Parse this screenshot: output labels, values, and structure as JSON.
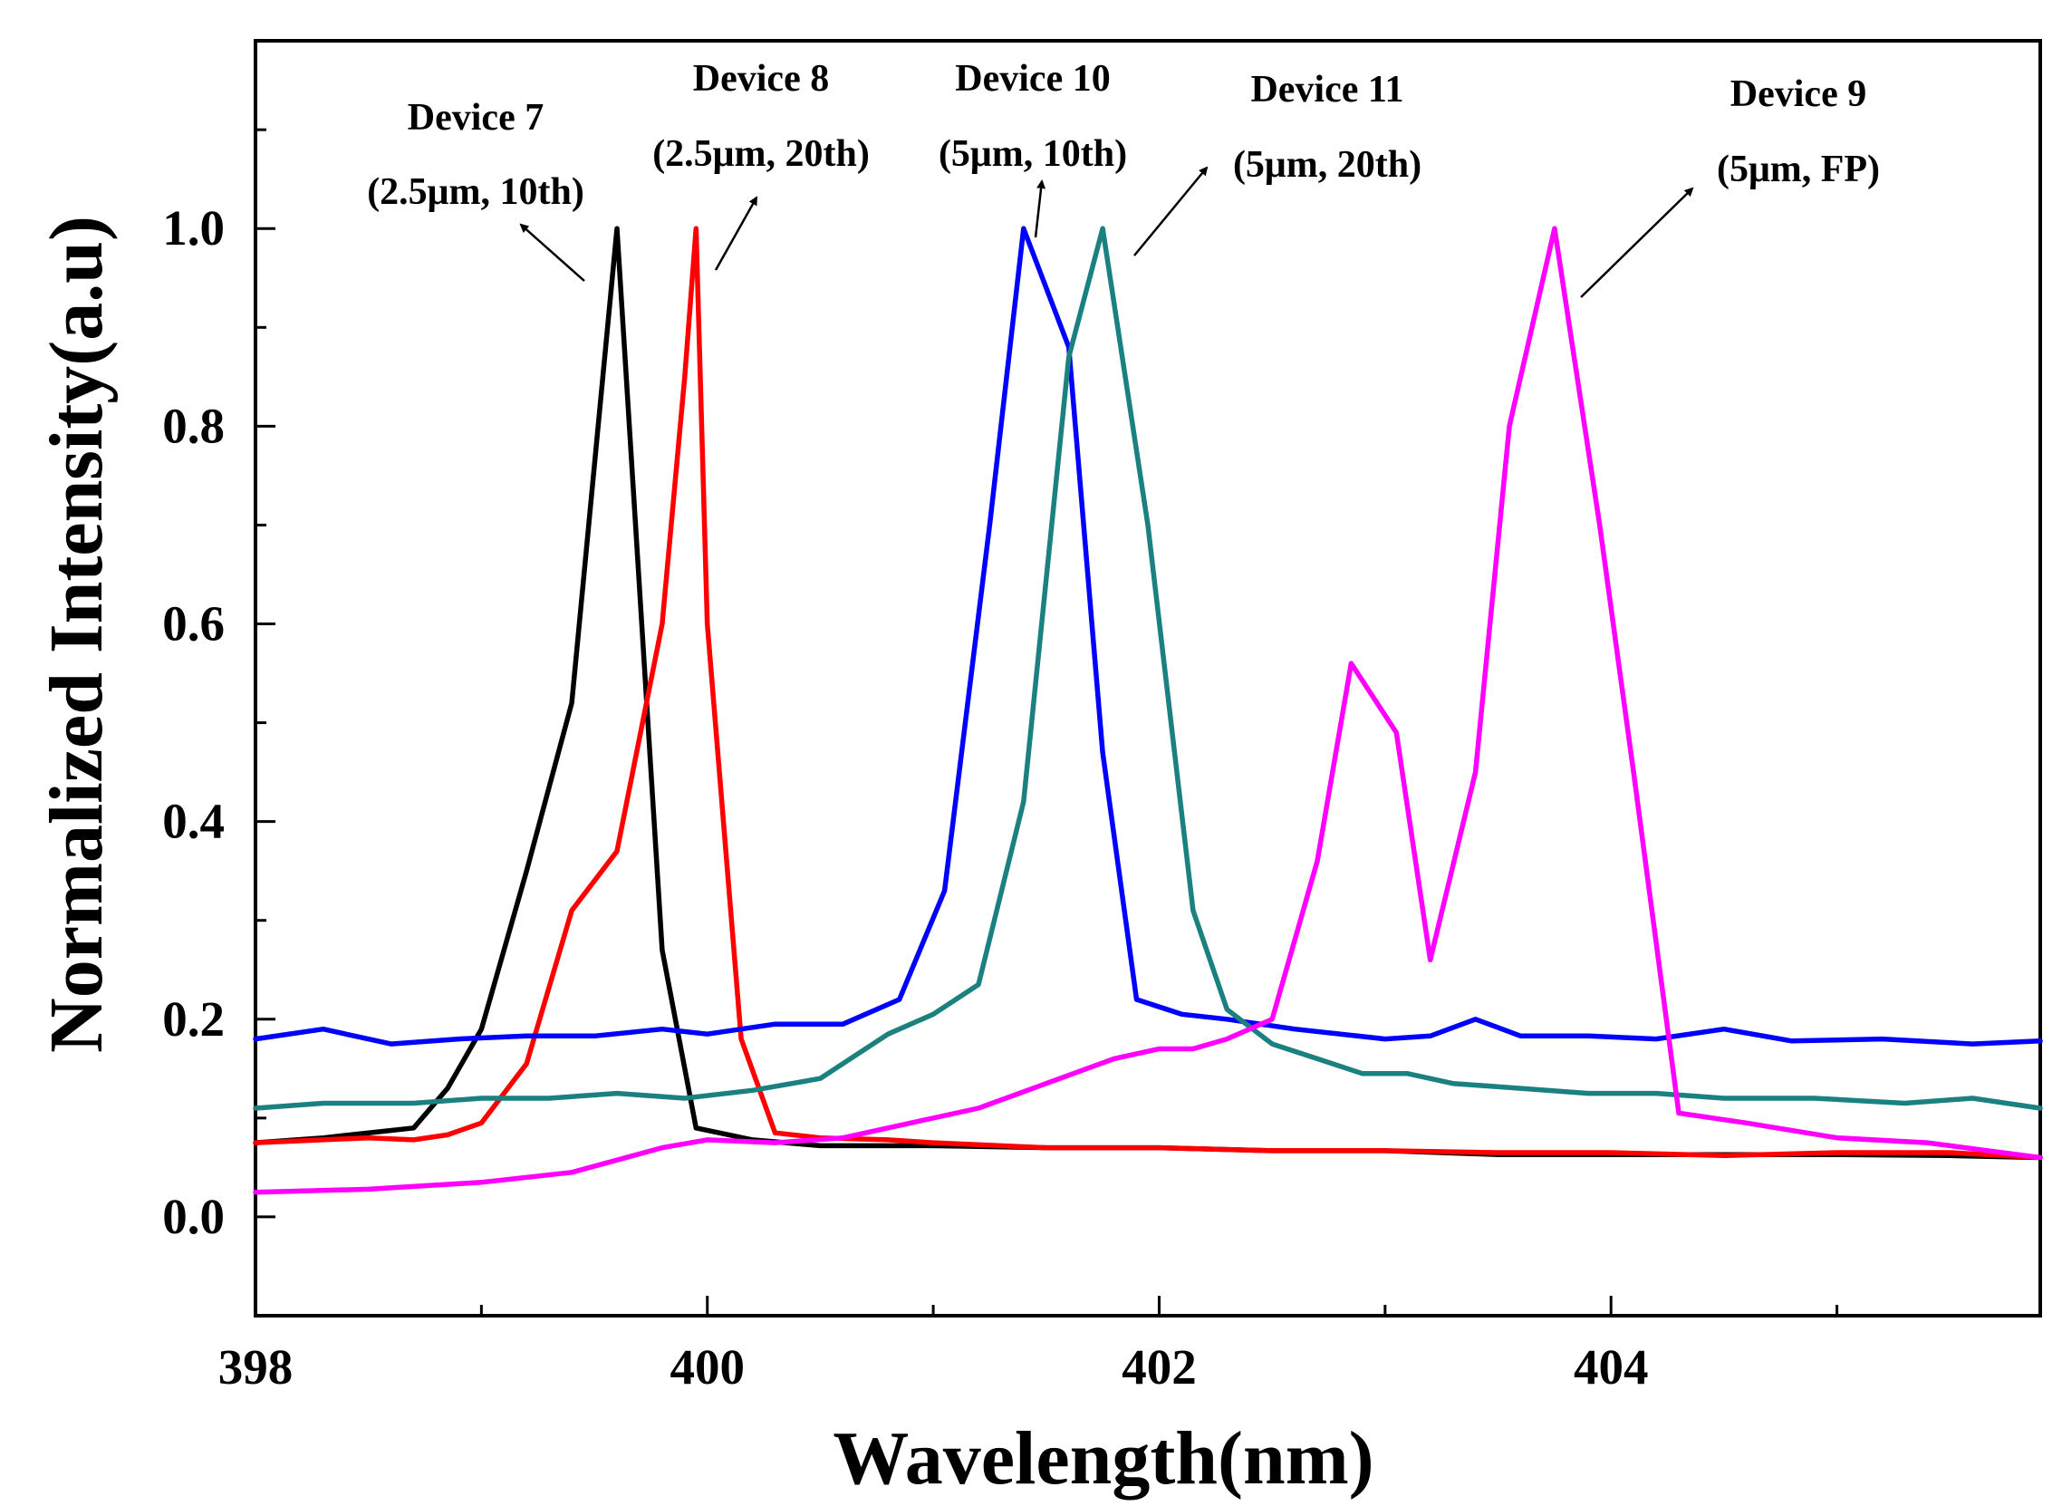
{
  "chart_data": {
    "type": "line",
    "xlabel": "Wavelength(nm)",
    "ylabel": "Normalized Intensity(a.u)",
    "xlim": [
      398,
      405.9
    ],
    "ylim": [
      -0.1,
      1.19
    ],
    "xticks": [
      398,
      400,
      402,
      404
    ],
    "xtick_labels": [
      "398",
      "400",
      "402",
      "404"
    ],
    "yticks": [
      0.0,
      0.2,
      0.4,
      0.6,
      0.8,
      1.0
    ],
    "ytick_labels": [
      "0.0",
      "0.2",
      "0.4",
      "0.6",
      "0.8",
      "1.0"
    ],
    "grid": false,
    "series": [
      {
        "name": "Device 7 (2.5μm, 10th)",
        "color": "#000000",
        "x": [
          398.0,
          398.3,
          398.7,
          398.85,
          399.0,
          399.2,
          399.4,
          399.6,
          399.8,
          399.95,
          400.2,
          400.5,
          401.0,
          401.5,
          402.0,
          402.5,
          403.0,
          403.5,
          404.0,
          404.5,
          405.0,
          405.5,
          405.9
        ],
        "y": [
          0.075,
          0.08,
          0.09,
          0.13,
          0.19,
          0.35,
          0.52,
          1.0,
          0.27,
          0.09,
          0.078,
          0.072,
          0.072,
          0.07,
          0.07,
          0.067,
          0.067,
          0.063,
          0.063,
          0.063,
          0.063,
          0.062,
          0.06
        ]
      },
      {
        "name": "Device 8 (2.5μm, 20th)",
        "color": "#ff0000",
        "x": [
          398.0,
          398.5,
          398.7,
          398.85,
          399.0,
          399.2,
          399.4,
          399.6,
          399.8,
          399.9,
          399.95,
          400.0,
          400.15,
          400.3,
          400.5,
          400.8,
          401.0,
          401.5,
          402.0,
          402.5,
          403.0,
          403.5,
          404.0,
          404.5,
          405.0,
          405.5,
          405.9
        ],
        "y": [
          0.075,
          0.08,
          0.078,
          0.083,
          0.095,
          0.155,
          0.31,
          0.37,
          0.6,
          0.85,
          1.0,
          0.6,
          0.18,
          0.085,
          0.08,
          0.078,
          0.075,
          0.07,
          0.07,
          0.067,
          0.067,
          0.065,
          0.065,
          0.062,
          0.065,
          0.065,
          0.06
        ]
      },
      {
        "name": "Device 10 (5μm, 10th)",
        "color": "#0000ff",
        "x": [
          398.0,
          398.3,
          398.6,
          398.9,
          399.2,
          399.5,
          399.8,
          400.0,
          400.3,
          400.6,
          400.85,
          401.05,
          401.25,
          401.4,
          401.6,
          401.75,
          401.9,
          402.1,
          402.3,
          402.6,
          403.0,
          403.2,
          403.4,
          403.6,
          403.9,
          404.2,
          404.5,
          404.8,
          405.2,
          405.6,
          405.9
        ],
        "y": [
          0.18,
          0.19,
          0.175,
          0.18,
          0.183,
          0.183,
          0.19,
          0.185,
          0.195,
          0.195,
          0.22,
          0.33,
          0.7,
          1.0,
          0.88,
          0.47,
          0.22,
          0.205,
          0.2,
          0.19,
          0.18,
          0.183,
          0.2,
          0.183,
          0.183,
          0.18,
          0.19,
          0.178,
          0.18,
          0.175,
          0.178
        ]
      },
      {
        "name": "Device 11 (5μm, 20th)",
        "color": "#1a8080",
        "x": [
          398.0,
          398.3,
          398.7,
          399.0,
          399.3,
          399.6,
          399.9,
          400.2,
          400.5,
          400.8,
          401.0,
          401.2,
          401.4,
          401.6,
          401.75,
          401.95,
          402.15,
          402.3,
          402.5,
          402.7,
          402.9,
          403.1,
          403.3,
          403.6,
          403.9,
          404.2,
          404.5,
          404.9,
          405.3,
          405.6,
          405.9
        ],
        "y": [
          0.11,
          0.115,
          0.115,
          0.12,
          0.12,
          0.125,
          0.12,
          0.128,
          0.14,
          0.185,
          0.205,
          0.235,
          0.42,
          0.87,
          1.0,
          0.7,
          0.31,
          0.21,
          0.175,
          0.16,
          0.145,
          0.145,
          0.135,
          0.13,
          0.125,
          0.125,
          0.12,
          0.12,
          0.115,
          0.12,
          0.11
        ]
      },
      {
        "name": "Device 9 (5μm, FP)",
        "color": "#ff00ff",
        "x": [
          398.0,
          398.5,
          399.0,
          399.4,
          399.8,
          400.0,
          400.3,
          400.6,
          400.9,
          401.2,
          401.5,
          401.8,
          402.0,
          402.15,
          402.3,
          402.5,
          402.7,
          402.85,
          403.05,
          403.2,
          403.4,
          403.55,
          403.75,
          403.95,
          404.1,
          404.3,
          404.6,
          405.0,
          405.4,
          405.9
        ],
        "y": [
          0.025,
          0.028,
          0.035,
          0.045,
          0.07,
          0.078,
          0.075,
          0.08,
          0.095,
          0.11,
          0.135,
          0.16,
          0.17,
          0.17,
          0.18,
          0.2,
          0.36,
          0.56,
          0.49,
          0.26,
          0.45,
          0.8,
          1.0,
          0.7,
          0.45,
          0.105,
          0.095,
          0.08,
          0.075,
          0.06
        ]
      }
    ],
    "annotations": [
      {
        "device": "Device 7",
        "detail": "(2.5μm, 10th)"
      },
      {
        "device": "Device 8",
        "detail": "(2.5μm, 20th)"
      },
      {
        "device": "Device 10",
        "detail": "(5μm, 10th)"
      },
      {
        "device": "Device 11",
        "detail": "(5μm, 20th)"
      },
      {
        "device": "Device 9",
        "detail": "(5μm, FP)"
      }
    ]
  }
}
